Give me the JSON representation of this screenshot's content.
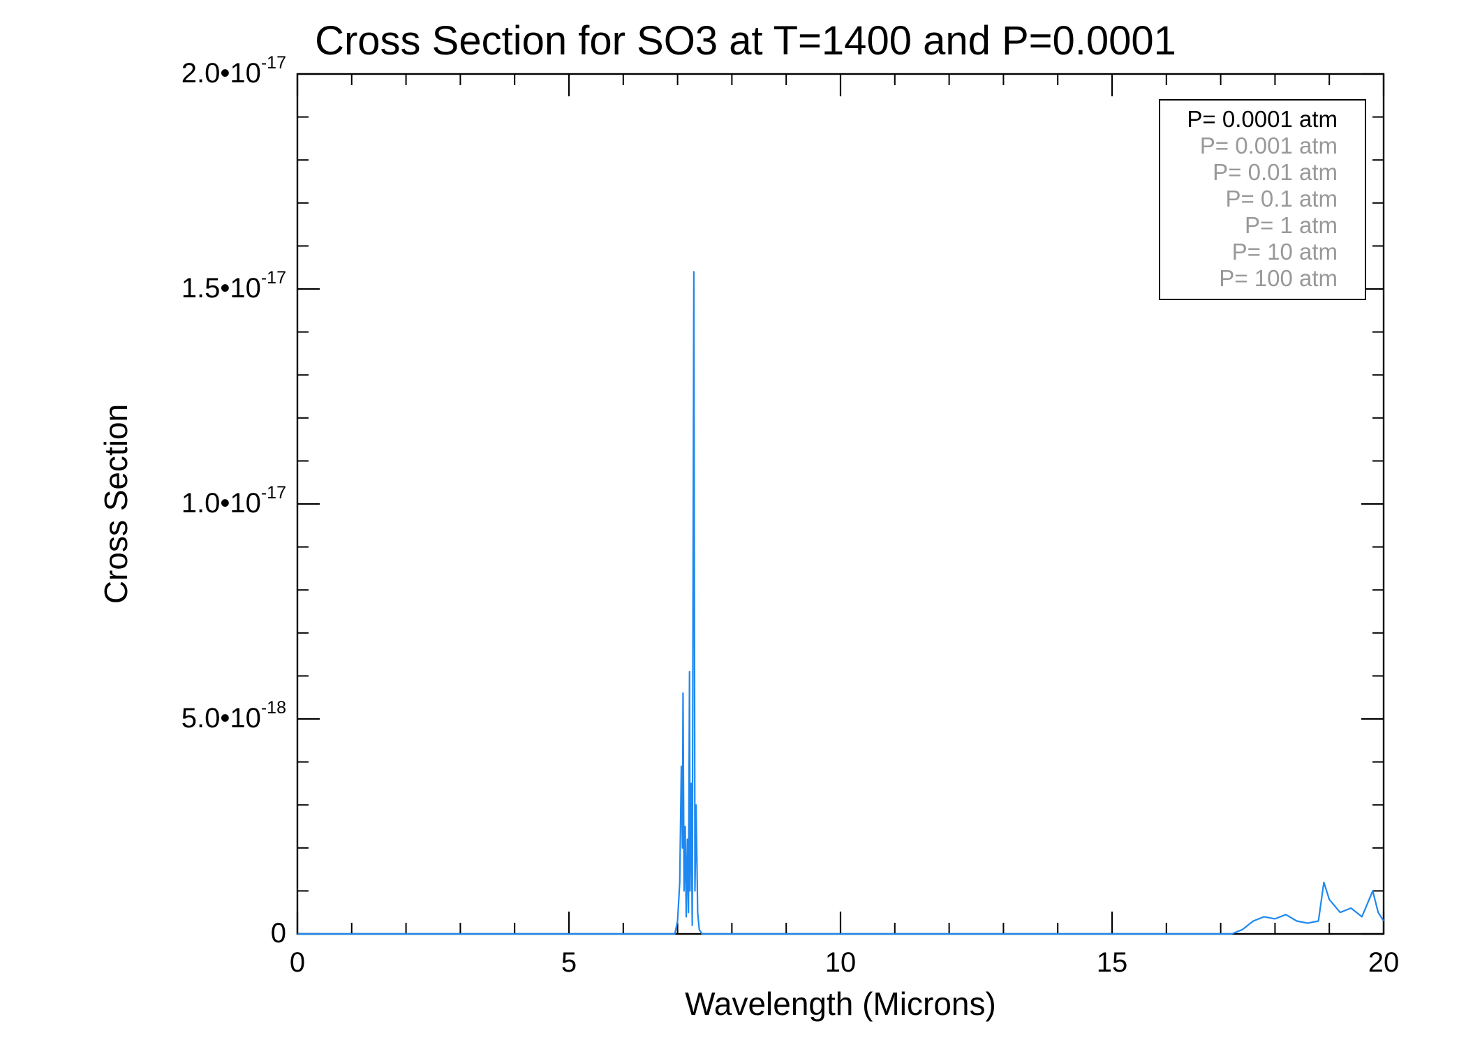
{
  "chart_data": {
    "type": "line",
    "title": "Cross Section for SO3 at T=1400 and P=0.0001",
    "xlabel": "Wavelength (Microns)",
    "ylabel": "Cross Section",
    "xlim": [
      0,
      20
    ],
    "ylim": [
      0,
      2e-17
    ],
    "grid": false,
    "x_ticks": [
      {
        "value": 0,
        "label": "0"
      },
      {
        "value": 5,
        "label": "5"
      },
      {
        "value": 10,
        "label": "10"
      },
      {
        "value": 15,
        "label": "15"
      },
      {
        "value": 20,
        "label": "20"
      }
    ],
    "y_ticks": [
      {
        "value": 0,
        "label": "0",
        "mantissa": "0",
        "exponent": ""
      },
      {
        "value": 5e-18,
        "label": "5.0•10-18",
        "mantissa": "5.0•10",
        "exponent": "-18"
      },
      {
        "value": 1e-17,
        "label": "1.0•10-17",
        "mantissa": "1.0•10",
        "exponent": "-17"
      },
      {
        "value": 1.5e-17,
        "label": "1.5•10-17",
        "mantissa": "1.5•10",
        "exponent": "-17"
      },
      {
        "value": 2e-17,
        "label": "2.0•10-17",
        "mantissa": "2.0•10",
        "exponent": "-17"
      }
    ],
    "legend": {
      "placement": "top-right",
      "entries": [
        {
          "label": "P= 0.0001 atm",
          "color": "#000000"
        },
        {
          "label": "P= 0.001 atm",
          "color": "#999999"
        },
        {
          "label": "P= 0.01 atm",
          "color": "#999999"
        },
        {
          "label": "P= 0.1 atm",
          "color": "#999999"
        },
        {
          "label": "P= 1 atm",
          "color": "#999999"
        },
        {
          "label": "P= 10 atm",
          "color": "#999999"
        },
        {
          "label": "P= 100 atm",
          "color": "#999999"
        }
      ]
    },
    "series": [
      {
        "name": "P= 0.0001 atm",
        "color": "#1e88f0",
        "points": [
          [
            0,
            0
          ],
          [
            6.95,
            0
          ],
          [
            7.0,
            3e-19
          ],
          [
            7.04,
            1.2e-18
          ],
          [
            7.07,
            3.9e-18
          ],
          [
            7.09,
            2e-18
          ],
          [
            7.1,
            5.6e-18
          ],
          [
            7.12,
            1e-18
          ],
          [
            7.14,
            2.5e-18
          ],
          [
            7.16,
            4e-19
          ],
          [
            7.18,
            2.2e-18
          ],
          [
            7.2,
            5e-19
          ],
          [
            7.22,
            6.1e-18
          ],
          [
            7.23,
            1e-18
          ],
          [
            7.25,
            3.5e-18
          ],
          [
            7.27,
            2e-19
          ],
          [
            7.3,
            1.54e-17
          ],
          [
            7.32,
            1e-18
          ],
          [
            7.34,
            3e-18
          ],
          [
            7.37,
            5e-19
          ],
          [
            7.4,
            1e-19
          ],
          [
            7.45,
            0
          ],
          [
            17.2,
            0
          ],
          [
            17.4,
            1e-19
          ],
          [
            17.6,
            3e-19
          ],
          [
            17.8,
            4e-19
          ],
          [
            18.0,
            3.5e-19
          ],
          [
            18.2,
            4.5e-19
          ],
          [
            18.4,
            3e-19
          ],
          [
            18.6,
            2.5e-19
          ],
          [
            18.8,
            3e-19
          ],
          [
            18.9,
            1.2e-18
          ],
          [
            19.0,
            8e-19
          ],
          [
            19.2,
            5e-19
          ],
          [
            19.4,
            6e-19
          ],
          [
            19.6,
            4e-19
          ],
          [
            19.8,
            1e-18
          ],
          [
            19.9,
            5e-19
          ],
          [
            20.0,
            3e-19
          ]
        ]
      }
    ]
  }
}
